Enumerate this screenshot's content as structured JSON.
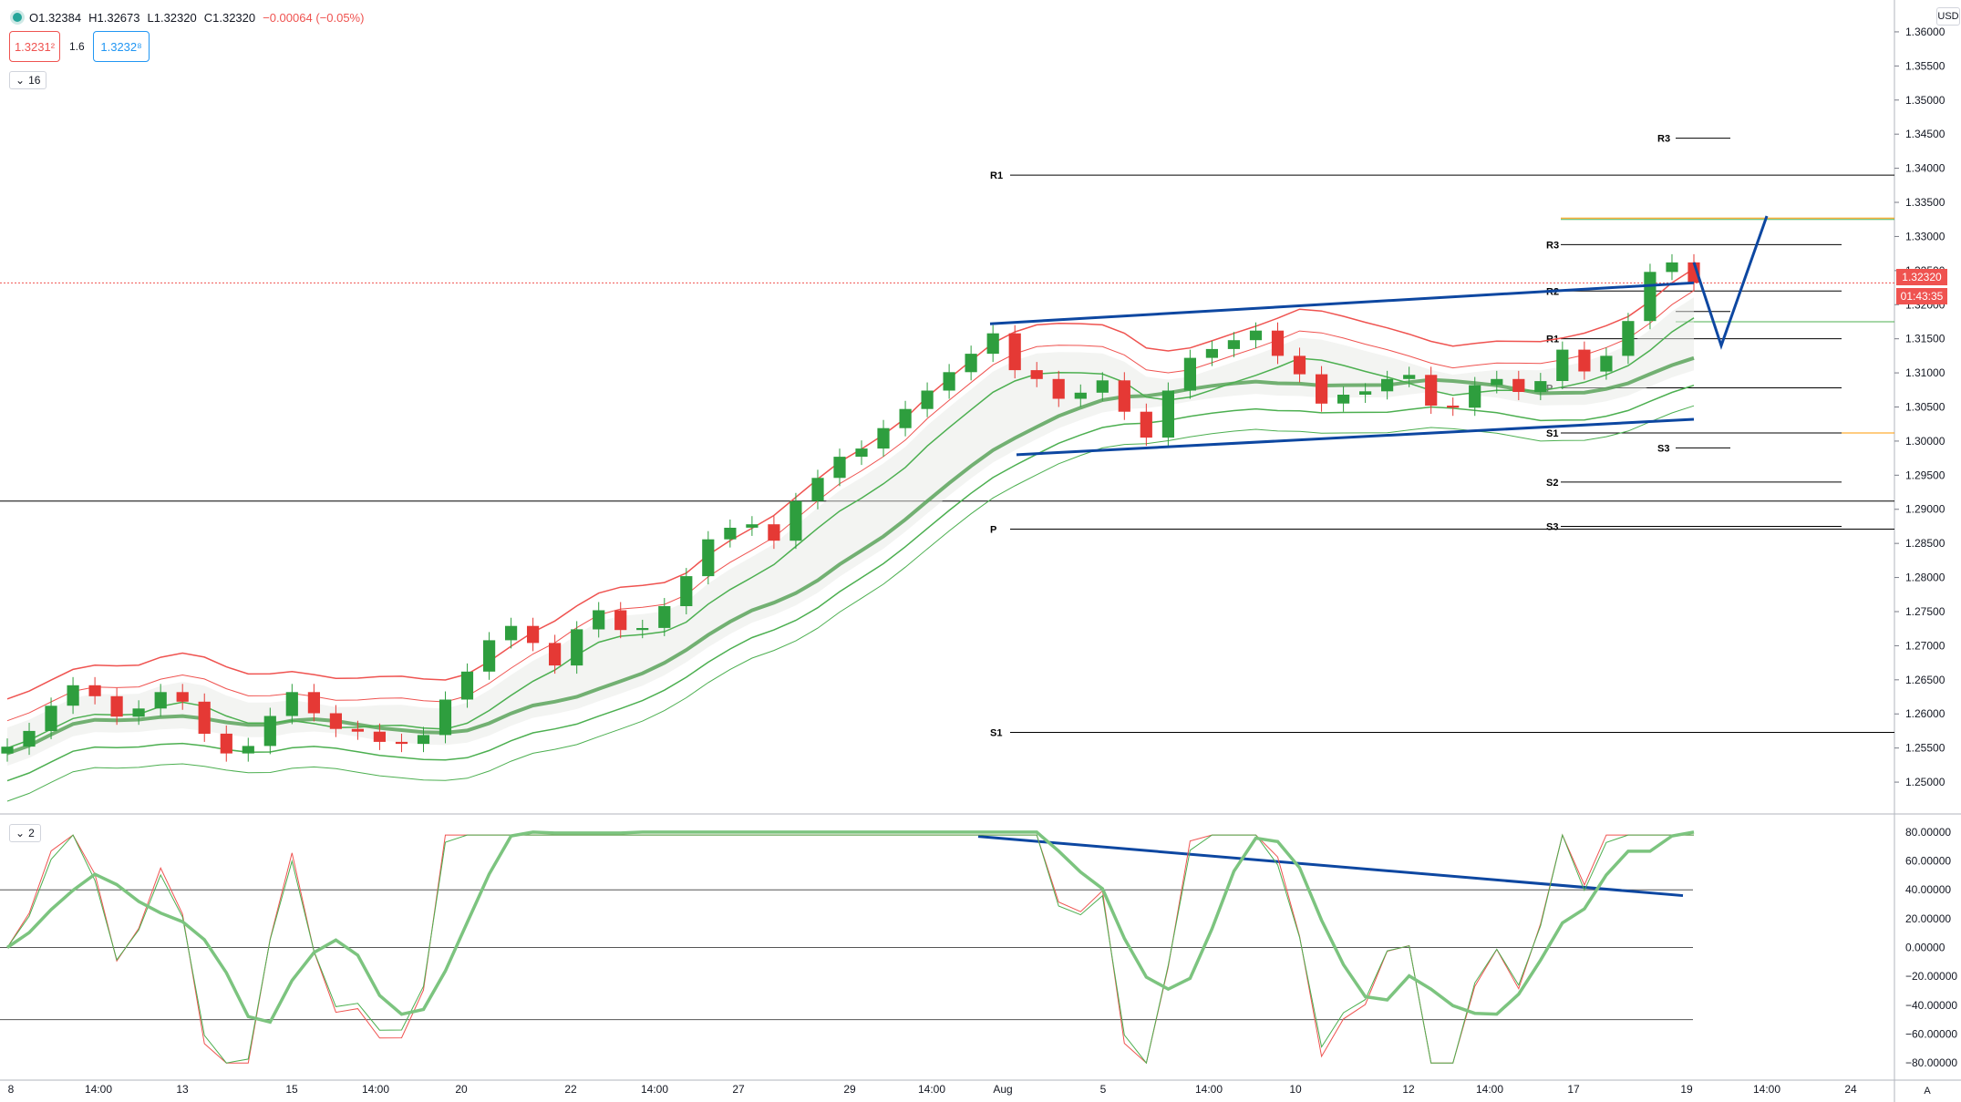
{
  "legend": {
    "open": "O1.32384",
    "high": "H1.32673",
    "low": "L1.32320",
    "close": "C1.32320",
    "change": "−0.00064 (−0.05%)"
  },
  "quotes": {
    "sell": "1.3231²",
    "spread": "1.6",
    "buy": "1.3232⁸"
  },
  "main_pane_toggle": "16",
  "oscillator_pane_toggle": "2",
  "currency": "USD",
  "last_price_tag": "1.32320",
  "countdown_tag": "01:43:35",
  "colors": {
    "up": "#26a69a",
    "candle_up": "#2e9e3e",
    "candle_down": "#e53935",
    "trend": "#0d47a1",
    "band": "#ef5350",
    "green_band": "#4caf50"
  },
  "icons": [
    "symbol-dot-icon",
    "chevron-down-icon",
    "auto-scale-icon"
  ],
  "chart_data": {
    "type": "candlestick",
    "price_axis": {
      "ticks": [
        "1.36000",
        "1.35500",
        "1.35000",
        "1.34500",
        "1.34000",
        "1.33500",
        "1.33000",
        "1.32500",
        "1.32000",
        "1.31500",
        "1.31000",
        "1.30500",
        "1.30000",
        "1.29500",
        "1.29000",
        "1.28500",
        "1.28000",
        "1.27500",
        "1.27000",
        "1.26500",
        "1.26000",
        "1.25500",
        "1.25000"
      ],
      "range": [
        1.246,
        1.3636
      ]
    },
    "time_axis": {
      "labels": [
        "8",
        "14:00",
        "13",
        "15",
        "14:00",
        "20",
        "22",
        "14:00",
        "27",
        "29",
        "14:00",
        "Aug",
        "5",
        "14:00",
        "10",
        "12",
        "14:00",
        "17",
        "19",
        "14:00",
        "24"
      ]
    },
    "oscillator_axis": {
      "ticks": [
        "80.00000",
        "60.00000",
        "40.00000",
        "20.00000",
        "0.00000",
        "−20.00000",
        "−40.00000",
        "−60.00000",
        "−80.00000"
      ],
      "range": [
        -90,
        85
      ],
      "levels": [
        40,
        0,
        -50
      ]
    },
    "pivot_labels_left": [
      "R1",
      "P",
      "S1"
    ],
    "pivot_labels_right": [
      "R3",
      "R2",
      "R1",
      "P",
      "S1",
      "S2",
      "S3"
    ],
    "pivot_labels_extra": [
      "R3",
      "S3"
    ],
    "close_path": [
      1.2552,
      1.2575,
      1.2612,
      1.2642,
      1.2626,
      1.2596,
      1.2608,
      1.2632,
      1.2618,
      1.2571,
      1.2542,
      1.2553,
      1.2597,
      1.2632,
      1.2601,
      1.2578,
      1.2574,
      1.2559,
      1.2556,
      1.2569,
      1.2621,
      1.2662,
      1.2708,
      1.2729,
      1.2704,
      1.2671,
      1.2724,
      1.2752,
      1.2723,
      1.2726,
      1.2758,
      1.2802,
      1.2856,
      1.2873,
      1.2878,
      1.2854,
      1.2912,
      1.2946,
      1.2977,
      1.2989,
      1.3019,
      1.3047,
      1.3074,
      1.3101,
      1.3128,
      1.3158,
      1.3104,
      1.3091,
      1.3062,
      1.3071,
      1.3089,
      1.3043,
      1.3005,
      1.3074,
      1.3122,
      1.3135,
      1.3148,
      1.3162,
      1.3125,
      1.3098,
      1.3055,
      1.3068,
      1.3073,
      1.3091,
      1.3097,
      1.3052,
      1.3049,
      1.3082,
      1.3091,
      1.3072,
      1.3088,
      1.3134,
      1.3102,
      1.3125,
      1.3176,
      1.3248,
      1.3262,
      1.3232
    ]
  }
}
